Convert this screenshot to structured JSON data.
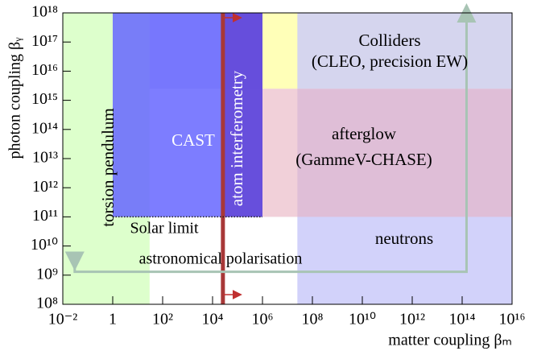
{
  "chart_data": {
    "type": "region",
    "xlabel": "matter coupling βₘ",
    "ylabel": "photon coupling βᵧ",
    "xlog": true,
    "ylog": true,
    "xlim": [
      0.01,
      1e+16
    ],
    "ylim": [
      100000000.0,
      1e+18
    ],
    "xticks": [
      {
        "value": 0.01,
        "label": "10⁻²"
      },
      1,
      {
        "value": 100,
        "label": "10²"
      },
      {
        "value": 10000,
        "label": "10⁴"
      },
      {
        "value": 1000000,
        "label": "10⁶"
      },
      {
        "value": 100000000,
        "label": "10⁸"
      },
      {
        "value": 10000000000.0,
        "label": "10¹⁰"
      },
      {
        "value": 1000000000000.0,
        "label": "10¹²"
      },
      {
        "value": 100000000000000.0,
        "label": "10¹⁴"
      },
      {
        "value": 1e+16,
        "label": "10¹⁶"
      }
    ],
    "yticks": [
      {
        "value": 100000000.0,
        "label": "10⁸"
      },
      {
        "value": 1000000000.0,
        "label": "10⁹"
      },
      {
        "value": 10000000000.0,
        "label": "10¹⁰"
      },
      {
        "value": 100000000000.0,
        "label": "10¹¹"
      },
      {
        "value": 1000000000000.0,
        "label": "10¹²"
      },
      {
        "value": 10000000000000.0,
        "label": "10¹³"
      },
      {
        "value": 100000000000000.0,
        "label": "10¹⁴"
      },
      {
        "value": 1000000000000000.0,
        "label": "10¹⁵"
      },
      {
        "value": 1e+16,
        "label": "10¹⁶"
      },
      {
        "value": 1e+17,
        "label": "10¹⁷"
      },
      {
        "value": 1e+18,
        "label": "10¹⁸"
      }
    ],
    "regions": [
      {
        "labels": [
          "Colliders",
          "(CLEO, precision EW)"
        ],
        "x": [
          0.01,
          1e+16
        ],
        "y": [
          2500000000000000.0,
          1e+18
        ],
        "color": "#d5d5ee"
      },
      {
        "labels": [
          "neutrons"
        ],
        "x": [
          25000000.0,
          1e+16
        ],
        "y": [
          100000000.0,
          2500000000000000.0
        ],
        "color": "#d2d2fa"
      },
      {
        "labels": [
          "afterglow",
          "(GammeV-CHASE)"
        ],
        "x": [
          1000000,
          1e+16
        ],
        "y": [
          100000000000.0,
          2500000000000000.0
        ],
        "color": "#e8b0c0",
        "opacity": 0.6
      },
      {
        "x": [
          1000000,
          25000000.0
        ],
        "y": [
          2500000000000000.0,
          1e+18
        ],
        "color": "#ffffb8"
      },
      {
        "labels": [
          "torsion pendulum"
        ],
        "x": [
          0.01,
          30
        ],
        "y": [
          100000000.0,
          1e+18
        ],
        "color": "#ddffcc",
        "label_vertical": true
      },
      {
        "labels": [
          "CAST"
        ],
        "x": [
          1,
          1000000
        ],
        "y": [
          100000000000.0,
          1e+18
        ],
        "color": "#6666ff",
        "opacity": 0.85,
        "label_color": "#ffffff"
      },
      {
        "labels": [
          "atom interferometry"
        ],
        "x": [
          26000,
          1000000
        ],
        "y": [
          100000000000.0,
          1e+18
        ],
        "color": "#6040d0",
        "opacity": 0.75,
        "label_color": "#ffffff",
        "label_vertical": true
      }
    ],
    "lines": [
      {
        "x": [
          26000,
          26000
        ],
        "y": [
          100000000.0,
          1e+18
        ],
        "color": "#a83838"
      },
      {
        "labels": [
          "Solar limit"
        ],
        "x": [
          1,
          1000000
        ],
        "y": [
          100000000000.0,
          100000000000.0
        ],
        "color": "#222222",
        "style": "dotted"
      },
      {
        "labels": [
          "astronomical polarisation"
        ],
        "x": [
          0.03,
          0.03,
          150000000000000.0,
          150000000000000.0
        ],
        "y": [
          3000000000.0,
          1300000000.0,
          1300000000.0,
          1e+18
        ],
        "color": "#a8c4b4"
      }
    ]
  }
}
